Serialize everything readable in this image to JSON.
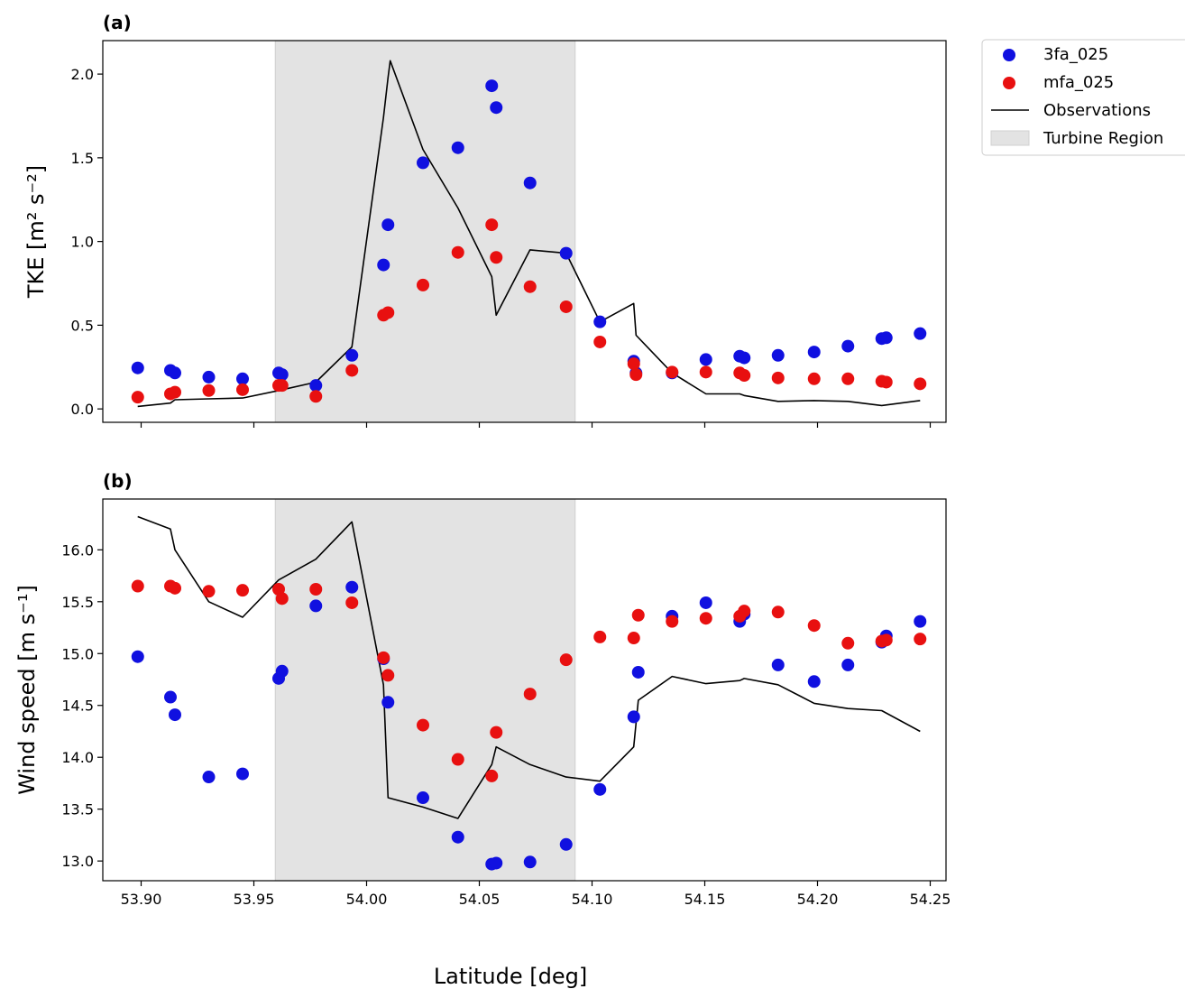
{
  "colors": {
    "series_3fa": "#1010e0",
    "series_mfa": "#e81010",
    "observations": "#000000",
    "turbine_region": "#e3e3e3"
  },
  "legend": {
    "items": [
      {
        "label": "3fa_025",
        "kind": "marker",
        "color": "#1010e0"
      },
      {
        "label": "mfa_025",
        "kind": "marker",
        "color": "#e81010"
      },
      {
        "label": "Observations",
        "kind": "line",
        "color": "#000000"
      },
      {
        "label": "Turbine Region",
        "kind": "patch",
        "color": "#e3e3e3"
      }
    ],
    "placement": "upper-right-outside"
  },
  "shared_xlabel": "Latitude [deg]",
  "chart_data": [
    {
      "panel": "(a)",
      "type": "scatter",
      "ylabel": "TKE [m² s⁻²]",
      "xlim": [
        53.883,
        54.257
      ],
      "ylim": [
        -0.08,
        2.2
      ],
      "xticks": [
        53.9,
        53.95,
        54.0,
        54.05,
        54.1,
        54.15,
        54.2,
        54.25
      ],
      "xtick_labels_shown": false,
      "yticks": [
        "0.0",
        "0.5",
        "1.0",
        "1.5",
        "2.0"
      ],
      "shaded_region": {
        "x": [
          53.9595,
          54.0925
        ],
        "label": "Turbine Region"
      },
      "series": [
        {
          "name": "3fa_025",
          "type": "scatter",
          "x": [
            53.8985,
            53.913,
            53.915,
            53.93,
            53.945,
            53.961,
            53.9625,
            53.9775,
            53.9935,
            54.0075,
            54.0095,
            54.025,
            54.0405,
            54.0555,
            54.0575,
            54.0725,
            54.0885,
            54.1035,
            54.1185,
            54.1195,
            54.1355,
            54.1505,
            54.1655,
            54.1675,
            54.1825,
            54.1985,
            54.2135,
            54.2285,
            54.2305,
            54.2455
          ],
          "y": [
            0.245,
            0.23,
            0.215,
            0.19,
            0.18,
            0.215,
            0.205,
            0.14,
            0.32,
            0.86,
            1.1,
            1.47,
            1.56,
            1.93,
            1.8,
            1.35,
            0.93,
            0.52,
            0.285,
            0.215,
            0.215,
            0.295,
            0.315,
            0.305,
            0.32,
            0.34,
            0.375,
            0.42,
            0.425,
            0.45
          ]
        },
        {
          "name": "mfa_025",
          "type": "scatter",
          "x": [
            53.8985,
            53.913,
            53.915,
            53.93,
            53.945,
            53.961,
            53.9625,
            53.9775,
            53.9935,
            54.0075,
            54.0095,
            54.025,
            54.0405,
            54.0555,
            54.0575,
            54.0725,
            54.0885,
            54.1035,
            54.1185,
            54.1195,
            54.1355,
            54.1505,
            54.1655,
            54.1675,
            54.1825,
            54.1985,
            54.2135,
            54.2285,
            54.2305,
            54.2455
          ],
          "y": [
            0.07,
            0.09,
            0.1,
            0.11,
            0.115,
            0.14,
            0.14,
            0.075,
            0.23,
            0.56,
            0.575,
            0.74,
            0.935,
            1.1,
            0.905,
            0.73,
            0.61,
            0.4,
            0.27,
            0.205,
            0.22,
            0.22,
            0.215,
            0.2,
            0.185,
            0.18,
            0.18,
            0.165,
            0.16,
            0.15
          ]
        },
        {
          "name": "Observations",
          "type": "line",
          "x": [
            53.8985,
            53.913,
            53.915,
            53.93,
            53.945,
            53.961,
            53.9775,
            53.9935,
            54.0075,
            54.0095,
            54.0105,
            54.025,
            54.0405,
            54.0555,
            54.0575,
            54.0725,
            54.0885,
            54.1035,
            54.1185,
            54.1195,
            54.1355,
            54.1505,
            54.1655,
            54.1675,
            54.1825,
            54.1985,
            54.2135,
            54.2285,
            54.2455
          ],
          "y": [
            0.015,
            0.035,
            0.055,
            0.06,
            0.065,
            0.11,
            0.16,
            0.37,
            1.74,
            1.98,
            2.08,
            1.55,
            1.2,
            0.79,
            0.56,
            0.95,
            0.93,
            0.52,
            0.63,
            0.44,
            0.215,
            0.09,
            0.09,
            0.08,
            0.045,
            0.05,
            0.045,
            0.02,
            0.05
          ]
        }
      ]
    },
    {
      "panel": "(b)",
      "type": "scatter",
      "ylabel": "Wind speed [m s⁻¹]",
      "xlim": [
        53.883,
        54.257
      ],
      "ylim": [
        12.81,
        16.49
      ],
      "xticks": [
        "53.90",
        "53.95",
        "54.00",
        "54.05",
        "54.10",
        "54.15",
        "54.20",
        "54.25"
      ],
      "yticks": [
        "13.0",
        "13.5",
        "14.0",
        "14.5",
        "15.0",
        "15.5",
        "16.0"
      ],
      "shaded_region": {
        "x": [
          53.9595,
          54.0925
        ],
        "label": "Turbine Region"
      },
      "series": [
        {
          "name": "3fa_025",
          "type": "scatter",
          "x": [
            53.8985,
            53.913,
            53.915,
            53.93,
            53.945,
            53.961,
            53.9625,
            53.9775,
            53.9935,
            54.0075,
            54.0095,
            54.025,
            54.0405,
            54.0555,
            54.0575,
            54.0725,
            54.0885,
            54.1035,
            54.1185,
            54.1205,
            54.1355,
            54.1505,
            54.1655,
            54.1675,
            54.1825,
            54.1985,
            54.2135,
            54.2285,
            54.2305,
            54.2455
          ],
          "y": [
            14.97,
            14.58,
            14.41,
            13.81,
            13.84,
            14.76,
            14.83,
            15.46,
            15.64,
            14.95,
            14.53,
            13.61,
            13.23,
            12.97,
            12.98,
            12.99,
            13.16,
            13.69,
            14.39,
            14.82,
            15.36,
            15.49,
            15.31,
            15.38,
            14.89,
            14.73,
            14.89,
            15.11,
            15.17,
            15.31
          ]
        },
        {
          "name": "mfa_025",
          "type": "scatter",
          "x": [
            53.8985,
            53.913,
            53.915,
            53.93,
            53.945,
            53.961,
            53.9625,
            53.9775,
            53.9935,
            54.0075,
            54.0095,
            54.025,
            54.0405,
            54.0555,
            54.0575,
            54.0725,
            54.0885,
            54.1035,
            54.1185,
            54.1205,
            54.1355,
            54.1505,
            54.1655,
            54.1675,
            54.1825,
            54.1985,
            54.2135,
            54.2285,
            54.2305,
            54.2455
          ],
          "y": [
            15.65,
            15.65,
            15.63,
            15.6,
            15.61,
            15.62,
            15.53,
            15.62,
            15.49,
            14.96,
            14.79,
            14.31,
            13.98,
            13.82,
            14.24,
            14.61,
            14.94,
            15.16,
            15.15,
            15.37,
            15.31,
            15.34,
            15.36,
            15.41,
            15.4,
            15.27,
            15.1,
            15.12,
            15.13,
            15.14
          ]
        },
        {
          "name": "Observations",
          "type": "line",
          "x": [
            53.8985,
            53.913,
            53.915,
            53.93,
            53.945,
            53.961,
            53.9775,
            53.9935,
            54.0075,
            54.0095,
            54.025,
            54.0405,
            54.0555,
            54.0575,
            54.0725,
            54.0885,
            54.1035,
            54.1185,
            54.1205,
            54.1355,
            54.1505,
            54.1655,
            54.1675,
            54.1825,
            54.1985,
            54.2135,
            54.2285,
            54.2455
          ],
          "y": [
            16.32,
            16.2,
            16.0,
            15.5,
            15.35,
            15.71,
            15.91,
            16.27,
            14.7,
            13.61,
            13.52,
            13.41,
            13.93,
            14.1,
            13.93,
            13.81,
            13.77,
            14.1,
            14.55,
            14.78,
            14.71,
            14.74,
            14.76,
            14.7,
            14.52,
            14.47,
            14.45,
            14.25
          ]
        }
      ]
    }
  ]
}
